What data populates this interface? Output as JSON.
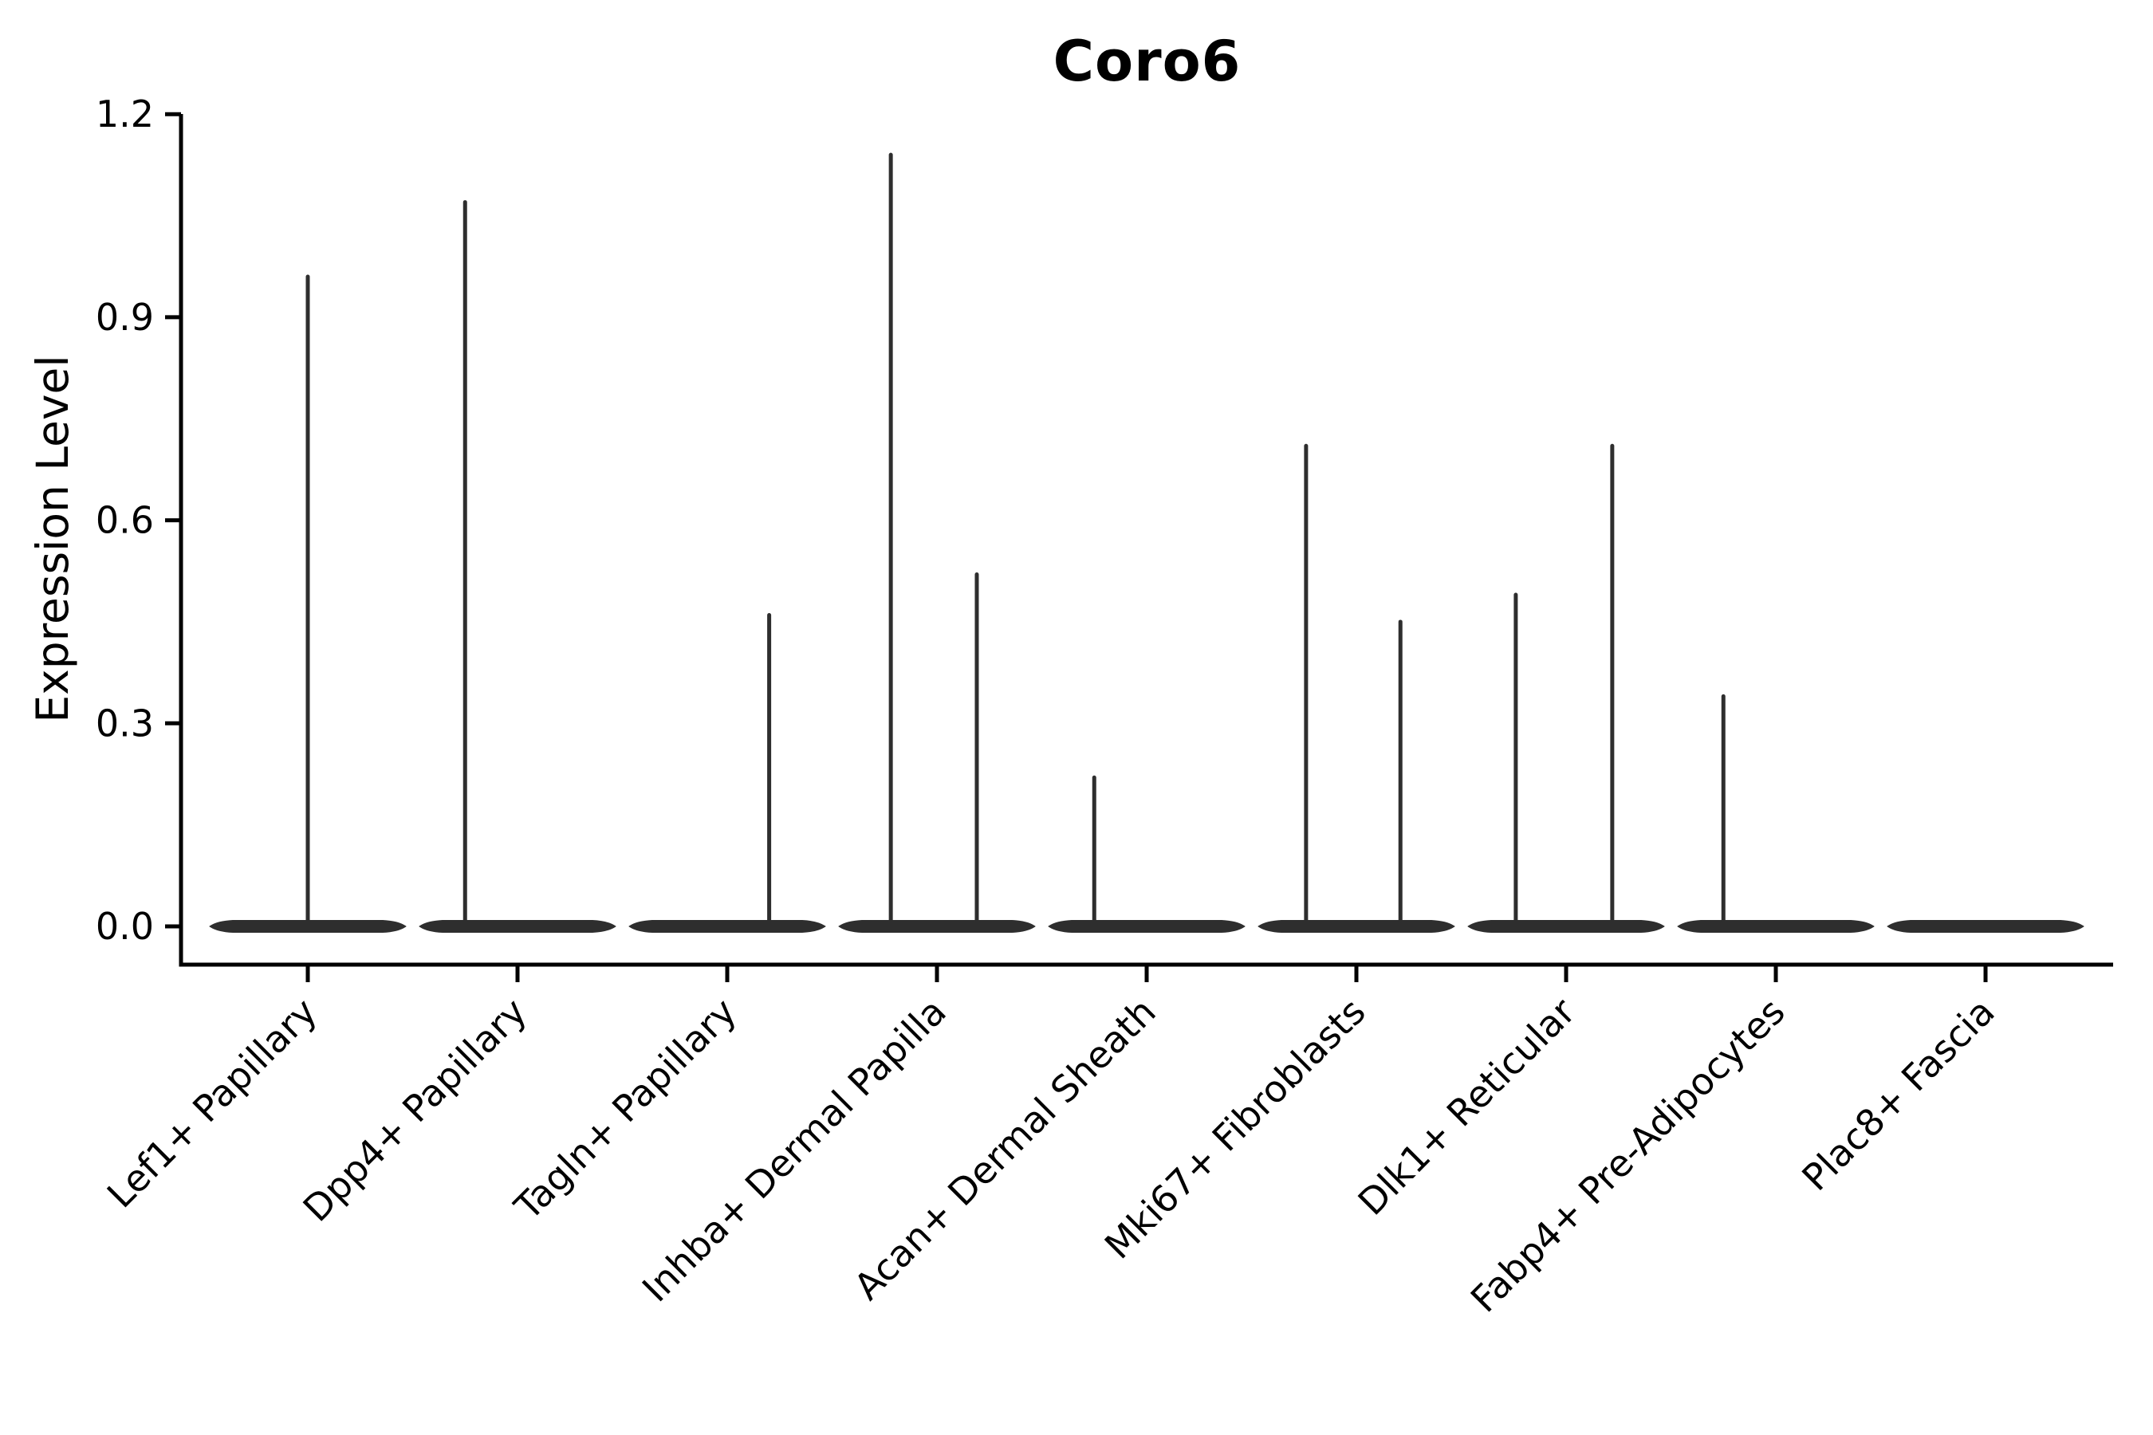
{
  "page": {
    "background_color": "#ffffff"
  },
  "chart_data": {
    "type": "violin",
    "title": "Coro6",
    "ylabel": "Expression Level",
    "xlabel": "",
    "ylim": [
      -0.06,
      1.2
    ],
    "yticks": [
      "0.0",
      "0.3",
      "0.6",
      "0.9",
      "1.2"
    ],
    "grid": false,
    "x_tick_rotation_deg": 45,
    "violin_color": "#2e2e2e",
    "axis_color": "#000000",
    "categories": [
      "Lef1+ Papillary",
      "Dpp4+ Papillary",
      "Tagln+ Papillary",
      "Inhba+ Dermal Papilla",
      "Acan+ Dermal Sheath",
      "Mki67+ Fibroblasts",
      "Dlk1+ Reticular",
      "Fabp4+ Pre-Adipocytes",
      "Plac8+ Fascia"
    ],
    "violins": [
      {
        "category": "Lef1+ Papillary",
        "base_value": 0.0,
        "spikes": [
          {
            "x_offset_frac": 0.0,
            "max_value": 0.96
          }
        ]
      },
      {
        "category": "Dpp4+ Papillary",
        "base_value": 0.0,
        "spikes": [
          {
            "x_offset_frac": -0.25,
            "max_value": 1.07
          }
        ]
      },
      {
        "category": "Tagln+ Papillary",
        "base_value": 0.0,
        "spikes": [
          {
            "x_offset_frac": 0.2,
            "max_value": 0.46
          }
        ]
      },
      {
        "category": "Inhba+ Dermal Papilla",
        "base_value": 0.0,
        "spikes": [
          {
            "x_offset_frac": -0.22,
            "max_value": 1.14
          },
          {
            "x_offset_frac": 0.19,
            "max_value": 0.52
          }
        ]
      },
      {
        "category": "Acan+ Dermal Sheath",
        "base_value": 0.0,
        "spikes": [
          {
            "x_offset_frac": -0.25,
            "max_value": 0.22
          }
        ]
      },
      {
        "category": "Mki67+ Fibroblasts",
        "base_value": 0.0,
        "spikes": [
          {
            "x_offset_frac": -0.24,
            "max_value": 0.71
          },
          {
            "x_offset_frac": 0.21,
            "max_value": 0.45
          }
        ]
      },
      {
        "category": "Dlk1+ Reticular",
        "base_value": 0.0,
        "spikes": [
          {
            "x_offset_frac": -0.24,
            "max_value": 0.49
          },
          {
            "x_offset_frac": 0.22,
            "max_value": 0.71
          }
        ]
      },
      {
        "category": "Fabp4+ Pre-Adipocytes",
        "base_value": 0.0,
        "spikes": [
          {
            "x_offset_frac": -0.25,
            "max_value": 0.34
          }
        ]
      },
      {
        "category": "Plac8+ Fascia",
        "base_value": 0.0,
        "spikes": []
      }
    ]
  }
}
